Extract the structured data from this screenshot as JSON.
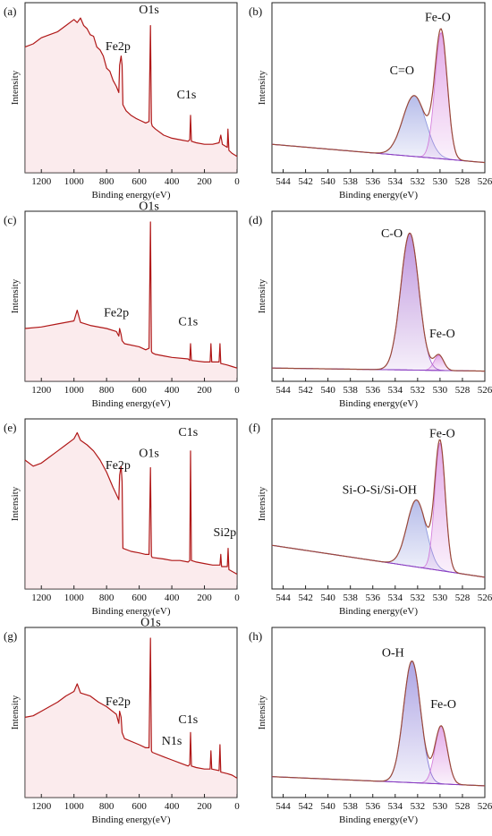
{
  "figure": {
    "colors": {
      "survey_line": "#b01818",
      "survey_fill": "#f3c6cc",
      "envelope": "#9a4a3a",
      "baseline": "#8a3fc2",
      "peak_feo": "#cc66d6",
      "peak_co_edge": "#8a3fc2",
      "peak_blue": "#7b86d8",
      "peak_oh": "#6a5acd"
    }
  },
  "chart_data": [
    {
      "id": "a",
      "panel_label": "(a)",
      "type": "line",
      "kind": "survey",
      "xlabel": "Binding energy(eV)",
      "ylabel": "Intensity",
      "xlim": [
        1300,
        0
      ],
      "x_reversed": true,
      "xticks": [
        "1200",
        "1000",
        "800",
        "600",
        "400",
        "200",
        "0"
      ],
      "ylim": [
        0,
        100
      ],
      "series": [
        {
          "x": [
            1300,
            1250,
            1200,
            1150,
            1100,
            1050,
            1000,
            980,
            960,
            940,
            920,
            900,
            880,
            860,
            840,
            820,
            800,
            780,
            760,
            740,
            725,
            720,
            711,
            705,
            700,
            680,
            650,
            620,
            600,
            560,
            540,
            531,
            525,
            520,
            500,
            450,
            400,
            350,
            300,
            290,
            285,
            280,
            250,
            200,
            150,
            110,
            100,
            90,
            60,
            56,
            50,
            30,
            0
          ],
          "y": [
            78,
            80,
            84,
            86,
            88,
            92,
            96,
            94,
            97,
            92,
            90,
            86,
            85,
            78,
            76,
            72,
            64,
            62,
            56,
            52,
            48,
            66,
            72,
            66,
            40,
            36,
            33,
            31,
            30,
            28,
            29,
            92,
            28,
            26,
            24,
            20,
            18,
            17,
            16,
            17,
            33,
            16,
            15,
            14,
            14,
            15,
            20,
            14,
            12,
            24,
            10,
            8,
            6
          ]
        }
      ],
      "annotations": [
        {
          "text": "Fe2p",
          "x": 730,
          "y": 76
        },
        {
          "text": "O1s",
          "x": 540,
          "y": 100
        },
        {
          "text": "C1s",
          "x": 310,
          "y": 44
        }
      ]
    },
    {
      "id": "b",
      "panel_label": "(b)",
      "type": "area",
      "kind": "fit",
      "xlabel": "Binding energy(eV)",
      "ylabel": "Intensity",
      "xlim": [
        545,
        526
      ],
      "x_reversed": true,
      "xticks": [
        "544",
        "542",
        "540",
        "538",
        "536",
        "534",
        "532",
        "530",
        "528",
        "526"
      ],
      "ylim": [
        0,
        100
      ],
      "baseline": {
        "start": 14,
        "end": 2
      },
      "peaks": [
        {
          "name": "C=O",
          "center": 532.3,
          "fwhm": 2.4,
          "height": 40,
          "color": "#7b86d8"
        },
        {
          "name": "Fe-O",
          "center": 529.9,
          "fwhm": 1.3,
          "height": 83,
          "color": "#cc66d6"
        }
      ],
      "annotations": [
        {
          "text": "C=O",
          "x": 533.4,
          "y": 60
        },
        {
          "text": "Fe-O",
          "x": 530.2,
          "y": 95
        }
      ]
    },
    {
      "id": "c",
      "panel_label": "(c)",
      "type": "line",
      "kind": "survey",
      "xlabel": "Binding energy(eV)",
      "ylabel": "Intensity",
      "xlim": [
        1300,
        0
      ],
      "x_reversed": true,
      "xticks": [
        "1200",
        "1000",
        "800",
        "600",
        "400",
        "200",
        "0"
      ],
      "ylim": [
        0,
        100
      ],
      "series": [
        {
          "x": [
            1300,
            1200,
            1100,
            1000,
            980,
            960,
            900,
            800,
            740,
            725,
            720,
            711,
            705,
            690,
            600,
            560,
            540,
            531,
            525,
            520,
            500,
            450,
            400,
            300,
            290,
            285,
            280,
            200,
            165,
            160,
            155,
            110,
            105,
            100,
            60,
            30,
            0
          ],
          "y": [
            30,
            31,
            33,
            35,
            42,
            34,
            32,
            30,
            28,
            25,
            30,
            26,
            22,
            20,
            18,
            16,
            17,
            100,
            15,
            14,
            13,
            12,
            11,
            10,
            9,
            20,
            9,
            8,
            8,
            20,
            8,
            8,
            20,
            7,
            6,
            5,
            4
          ]
        }
      ],
      "annotations": [
        {
          "text": "Fe2p",
          "x": 740,
          "y": 38
        },
        {
          "text": "O1s",
          "x": 540,
          "y": 108
        },
        {
          "text": "C1s",
          "x": 300,
          "y": 32
        }
      ]
    },
    {
      "id": "d",
      "panel_label": "(d)",
      "type": "area",
      "kind": "fit",
      "xlabel": "Binding energy(eV)",
      "ylabel": "Intensity",
      "xlim": [
        545,
        526
      ],
      "x_reversed": true,
      "xticks": [
        "544",
        "542",
        "540",
        "538",
        "536",
        "534",
        "532",
        "530",
        "528",
        "526"
      ],
      "ylim": [
        0,
        100
      ],
      "baseline": {
        "start": 4,
        "end": 2
      },
      "peaks": [
        {
          "name": "C-O",
          "center": 532.7,
          "fwhm": 1.9,
          "height": 90,
          "color": "#8a3fc2"
        },
        {
          "name": "Fe-O",
          "center": 530.1,
          "fwhm": 1.0,
          "height": 10,
          "color": "#cc66d6"
        }
      ],
      "annotations": [
        {
          "text": "C-O",
          "x": 534.3,
          "y": 90
        },
        {
          "text": "Fe-O",
          "x": 529.8,
          "y": 24
        }
      ]
    },
    {
      "id": "e",
      "panel_label": "(e)",
      "type": "line",
      "kind": "survey",
      "xlabel": "Binding energy(eV)",
      "ylabel": "Intensity",
      "xlim": [
        1300,
        0
      ],
      "x_reversed": true,
      "xticks": [
        "1200",
        "1000",
        "800",
        "600",
        "400",
        "200",
        "0"
      ],
      "ylim": [
        0,
        100
      ],
      "series": [
        {
          "x": [
            1300,
            1250,
            1200,
            1150,
            1100,
            1050,
            1000,
            980,
            960,
            920,
            880,
            840,
            800,
            760,
            725,
            720,
            711,
            705,
            700,
            650,
            600,
            560,
            540,
            531,
            525,
            520,
            450,
            400,
            350,
            300,
            290,
            285,
            280,
            250,
            200,
            150,
            105,
            100,
            95,
            60,
            55,
            50,
            0
          ],
          "y": [
            80,
            76,
            78,
            82,
            86,
            90,
            94,
            98,
            93,
            90,
            86,
            80,
            72,
            62,
            54,
            70,
            76,
            66,
            22,
            20,
            19,
            18,
            18,
            75,
            17,
            16,
            15,
            14,
            14,
            13,
            14,
            86,
            14,
            13,
            12,
            11,
            11,
            18,
            10,
            10,
            22,
            8,
            5
          ]
        }
      ],
      "annotations": [
        {
          "text": "Fe2p",
          "x": 730,
          "y": 74
        },
        {
          "text": "O1s",
          "x": 540,
          "y": 82
        },
        {
          "text": "C1s",
          "x": 300,
          "y": 96
        },
        {
          "text": "Si2p",
          "x": 75,
          "y": 30
        }
      ]
    },
    {
      "id": "f",
      "panel_label": "(f)",
      "type": "area",
      "kind": "fit",
      "xlabel": "Binding energy(eV)",
      "ylabel": "Intensity",
      "xlim": [
        545,
        526
      ],
      "x_reversed": true,
      "xticks": [
        "544",
        "542",
        "540",
        "538",
        "536",
        "534",
        "532",
        "530",
        "528",
        "526"
      ],
      "ylim": [
        0,
        100
      ],
      "baseline": {
        "start": 24,
        "end": 3
      },
      "peaks": [
        {
          "name": "Si-O-Si/Si-OH",
          "center": 532.1,
          "fwhm": 2.0,
          "height": 44,
          "color": "#7b86d8"
        },
        {
          "name": "Fe-O",
          "center": 530.0,
          "fwhm": 1.1,
          "height": 84,
          "color": "#cc66d6"
        }
      ],
      "annotations": [
        {
          "text": "Si-O-Si/Si-OH",
          "x": 535.4,
          "y": 58
        },
        {
          "text": "Fe-O",
          "x": 529.8,
          "y": 95
        }
      ]
    },
    {
      "id": "g",
      "panel_label": "(g)",
      "type": "line",
      "kind": "survey",
      "xlabel": "Binding energy(eV)",
      "ylabel": "Intensity",
      "xlim": [
        1300,
        0
      ],
      "x_reversed": true,
      "xticks": [
        "1200",
        "1000",
        "800",
        "600",
        "400",
        "200",
        "0"
      ],
      "ylim": [
        0,
        100
      ],
      "series": [
        {
          "x": [
            1300,
            1250,
            1200,
            1150,
            1100,
            1050,
            1000,
            980,
            960,
            900,
            850,
            800,
            740,
            725,
            720,
            711,
            705,
            690,
            600,
            560,
            540,
            531,
            525,
            520,
            450,
            400,
            350,
            300,
            290,
            285,
            280,
            250,
            200,
            165,
            160,
            155,
            110,
            105,
            100,
            60,
            30,
            0
          ],
          "y": [
            48,
            49,
            52,
            55,
            58,
            62,
            65,
            70,
            64,
            62,
            58,
            55,
            50,
            44,
            52,
            48,
            38,
            34,
            30,
            28,
            28,
            100,
            26,
            25,
            22,
            20,
            18,
            16,
            17,
            38,
            16,
            15,
            14,
            14,
            26,
            14,
            13,
            30,
            12,
            11,
            10,
            8
          ]
        }
      ],
      "annotations": [
        {
          "text": "Fe2p",
          "x": 730,
          "y": 56
        },
        {
          "text": "O1s",
          "x": 530,
          "y": 108
        },
        {
          "text": "C1s",
          "x": 300,
          "y": 44
        },
        {
          "text": "N1s",
          "x": 400,
          "y": 30
        }
      ]
    },
    {
      "id": "h",
      "panel_label": "(h)",
      "type": "area",
      "kind": "fit",
      "xlabel": "Binding energy(eV)",
      "ylabel": "Intensity",
      "xlim": [
        545,
        526
      ],
      "x_reversed": true,
      "xticks": [
        "544",
        "542",
        "540",
        "538",
        "536",
        "534",
        "532",
        "530",
        "528",
        "526"
      ],
      "ylim": [
        0,
        100
      ],
      "baseline": {
        "start": 9,
        "end": 3
      },
      "peaks": [
        {
          "name": "O-H",
          "center": 532.5,
          "fwhm": 1.8,
          "height": 80,
          "color": "#6a5acd"
        },
        {
          "name": "Fe-O",
          "center": 529.9,
          "fwhm": 1.3,
          "height": 38,
          "color": "#cc66d6"
        }
      ],
      "annotations": [
        {
          "text": "O-H",
          "x": 534.2,
          "y": 88
        },
        {
          "text": "Fe-O",
          "x": 529.7,
          "y": 54
        }
      ]
    }
  ]
}
